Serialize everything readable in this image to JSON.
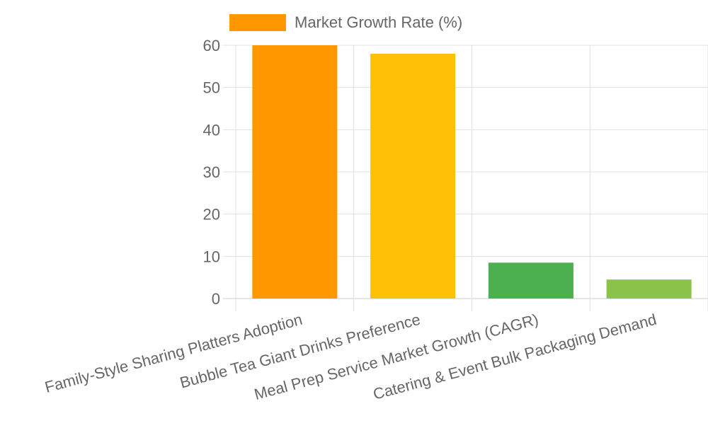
{
  "chart_data": {
    "type": "bar",
    "categories": [
      "Family-Style Sharing Platters Adoption",
      "Bubble Tea Giant Drinks Preference",
      "Meal Prep Service Market Growth (CAGR)",
      "Catering & Event Bulk Packaging Demand"
    ],
    "series": [
      {
        "name": "Market Growth Rate (%)",
        "values": [
          60,
          58,
          8.5,
          4.5
        ],
        "colors": [
          "#ff9800",
          "#ffc107",
          "#4caf50",
          "#8bc34a"
        ]
      }
    ],
    "ylim": [
      0,
      60
    ],
    "yticks": [
      0,
      10,
      20,
      30,
      40,
      50,
      60
    ],
    "grid": true,
    "legend_position": "top",
    "legend_color": "#ff9800"
  }
}
